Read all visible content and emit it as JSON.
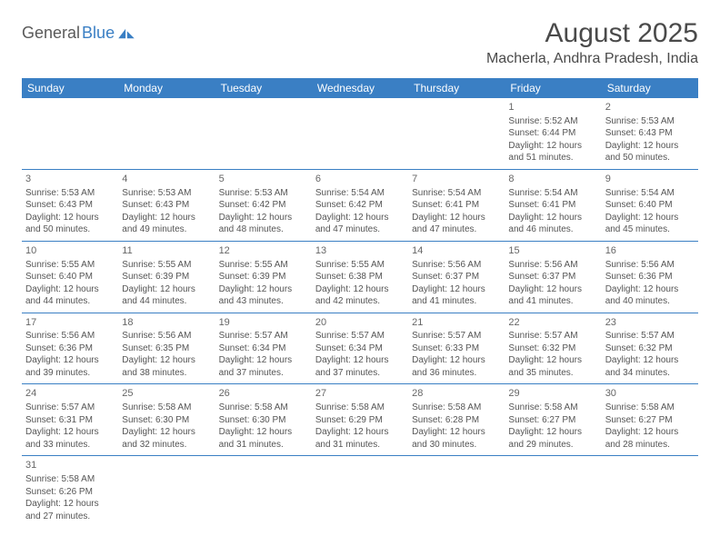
{
  "logo": {
    "general": "General",
    "blue": "Blue"
  },
  "header": {
    "title": "August 2025",
    "location": "Macherla, Andhra Pradesh, India"
  },
  "colors": {
    "headerBg": "#3a7fc4",
    "headerText": "#ffffff",
    "border": "#3a7fc4",
    "bodyText": "#555555",
    "titleText": "#4a4a4a"
  },
  "weekdays": [
    "Sunday",
    "Monday",
    "Tuesday",
    "Wednesday",
    "Thursday",
    "Friday",
    "Saturday"
  ],
  "days": [
    {
      "n": 1,
      "sr": "5:52 AM",
      "ss": "6:44 PM",
      "dl": "12 hours and 51 minutes."
    },
    {
      "n": 2,
      "sr": "5:53 AM",
      "ss": "6:43 PM",
      "dl": "12 hours and 50 minutes."
    },
    {
      "n": 3,
      "sr": "5:53 AM",
      "ss": "6:43 PM",
      "dl": "12 hours and 50 minutes."
    },
    {
      "n": 4,
      "sr": "5:53 AM",
      "ss": "6:43 PM",
      "dl": "12 hours and 49 minutes."
    },
    {
      "n": 5,
      "sr": "5:53 AM",
      "ss": "6:42 PM",
      "dl": "12 hours and 48 minutes."
    },
    {
      "n": 6,
      "sr": "5:54 AM",
      "ss": "6:42 PM",
      "dl": "12 hours and 47 minutes."
    },
    {
      "n": 7,
      "sr": "5:54 AM",
      "ss": "6:41 PM",
      "dl": "12 hours and 47 minutes."
    },
    {
      "n": 8,
      "sr": "5:54 AM",
      "ss": "6:41 PM",
      "dl": "12 hours and 46 minutes."
    },
    {
      "n": 9,
      "sr": "5:54 AM",
      "ss": "6:40 PM",
      "dl": "12 hours and 45 minutes."
    },
    {
      "n": 10,
      "sr": "5:55 AM",
      "ss": "6:40 PM",
      "dl": "12 hours and 44 minutes."
    },
    {
      "n": 11,
      "sr": "5:55 AM",
      "ss": "6:39 PM",
      "dl": "12 hours and 44 minutes."
    },
    {
      "n": 12,
      "sr": "5:55 AM",
      "ss": "6:39 PM",
      "dl": "12 hours and 43 minutes."
    },
    {
      "n": 13,
      "sr": "5:55 AM",
      "ss": "6:38 PM",
      "dl": "12 hours and 42 minutes."
    },
    {
      "n": 14,
      "sr": "5:56 AM",
      "ss": "6:37 PM",
      "dl": "12 hours and 41 minutes."
    },
    {
      "n": 15,
      "sr": "5:56 AM",
      "ss": "6:37 PM",
      "dl": "12 hours and 41 minutes."
    },
    {
      "n": 16,
      "sr": "5:56 AM",
      "ss": "6:36 PM",
      "dl": "12 hours and 40 minutes."
    },
    {
      "n": 17,
      "sr": "5:56 AM",
      "ss": "6:36 PM",
      "dl": "12 hours and 39 minutes."
    },
    {
      "n": 18,
      "sr": "5:56 AM",
      "ss": "6:35 PM",
      "dl": "12 hours and 38 minutes."
    },
    {
      "n": 19,
      "sr": "5:57 AM",
      "ss": "6:34 PM",
      "dl": "12 hours and 37 minutes."
    },
    {
      "n": 20,
      "sr": "5:57 AM",
      "ss": "6:34 PM",
      "dl": "12 hours and 37 minutes."
    },
    {
      "n": 21,
      "sr": "5:57 AM",
      "ss": "6:33 PM",
      "dl": "12 hours and 36 minutes."
    },
    {
      "n": 22,
      "sr": "5:57 AM",
      "ss": "6:32 PM",
      "dl": "12 hours and 35 minutes."
    },
    {
      "n": 23,
      "sr": "5:57 AM",
      "ss": "6:32 PM",
      "dl": "12 hours and 34 minutes."
    },
    {
      "n": 24,
      "sr": "5:57 AM",
      "ss": "6:31 PM",
      "dl": "12 hours and 33 minutes."
    },
    {
      "n": 25,
      "sr": "5:58 AM",
      "ss": "6:30 PM",
      "dl": "12 hours and 32 minutes."
    },
    {
      "n": 26,
      "sr": "5:58 AM",
      "ss": "6:30 PM",
      "dl": "12 hours and 31 minutes."
    },
    {
      "n": 27,
      "sr": "5:58 AM",
      "ss": "6:29 PM",
      "dl": "12 hours and 31 minutes."
    },
    {
      "n": 28,
      "sr": "5:58 AM",
      "ss": "6:28 PM",
      "dl": "12 hours and 30 minutes."
    },
    {
      "n": 29,
      "sr": "5:58 AM",
      "ss": "6:27 PM",
      "dl": "12 hours and 29 minutes."
    },
    {
      "n": 30,
      "sr": "5:58 AM",
      "ss": "6:27 PM",
      "dl": "12 hours and 28 minutes."
    },
    {
      "n": 31,
      "sr": "5:58 AM",
      "ss": "6:26 PM",
      "dl": "12 hours and 27 minutes."
    }
  ],
  "labels": {
    "sunrise": "Sunrise:",
    "sunset": "Sunset:",
    "daylight": "Daylight:"
  },
  "layout": {
    "firstDayOffset": 5,
    "totalDays": 31
  }
}
